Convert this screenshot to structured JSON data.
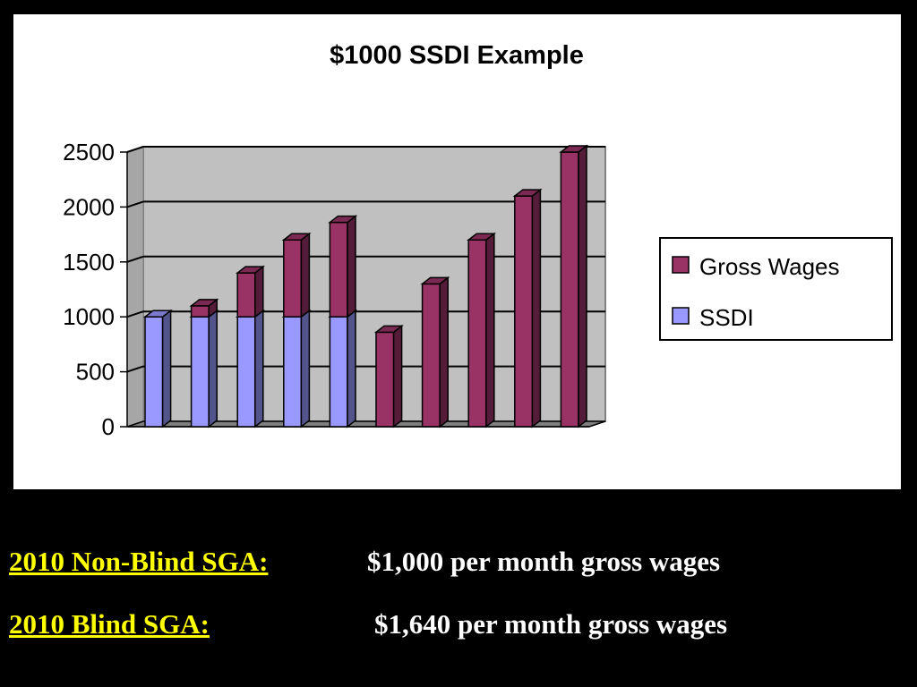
{
  "chart_data": {
    "type": "bar",
    "stacked": true,
    "three_d": true,
    "title": "$1000 SSDI Example",
    "xlabel": "",
    "ylabel": "",
    "ylim": [
      0,
      2500
    ],
    "yticks": [
      0,
      500,
      1000,
      1500,
      2000,
      2500
    ],
    "categories": [
      "",
      "",
      "",
      "",
      "",
      "",
      "",
      "",
      "",
      ""
    ],
    "series": [
      {
        "name": "SSDI",
        "color": "#9999ff",
        "values": [
          1000,
          1000,
          1000,
          1000,
          1000,
          0,
          0,
          0,
          0,
          0
        ]
      },
      {
        "name": "Gross Wages",
        "color": "#993366",
        "values": [
          0,
          100,
          400,
          700,
          860,
          860,
          1300,
          1700,
          2100,
          2500
        ]
      }
    ],
    "legend_order": [
      "Gross Wages",
      "SSDI"
    ],
    "grid": true,
    "legend_position": "right",
    "plot_background": "#c0c0c0"
  },
  "footer": {
    "rows": [
      {
        "label": "2010 Non-Blind SGA:",
        "value": "$1,000 per month gross wages"
      },
      {
        "label": "2010 Blind SGA:",
        "value": "$1,640 per month gross wages"
      }
    ]
  }
}
